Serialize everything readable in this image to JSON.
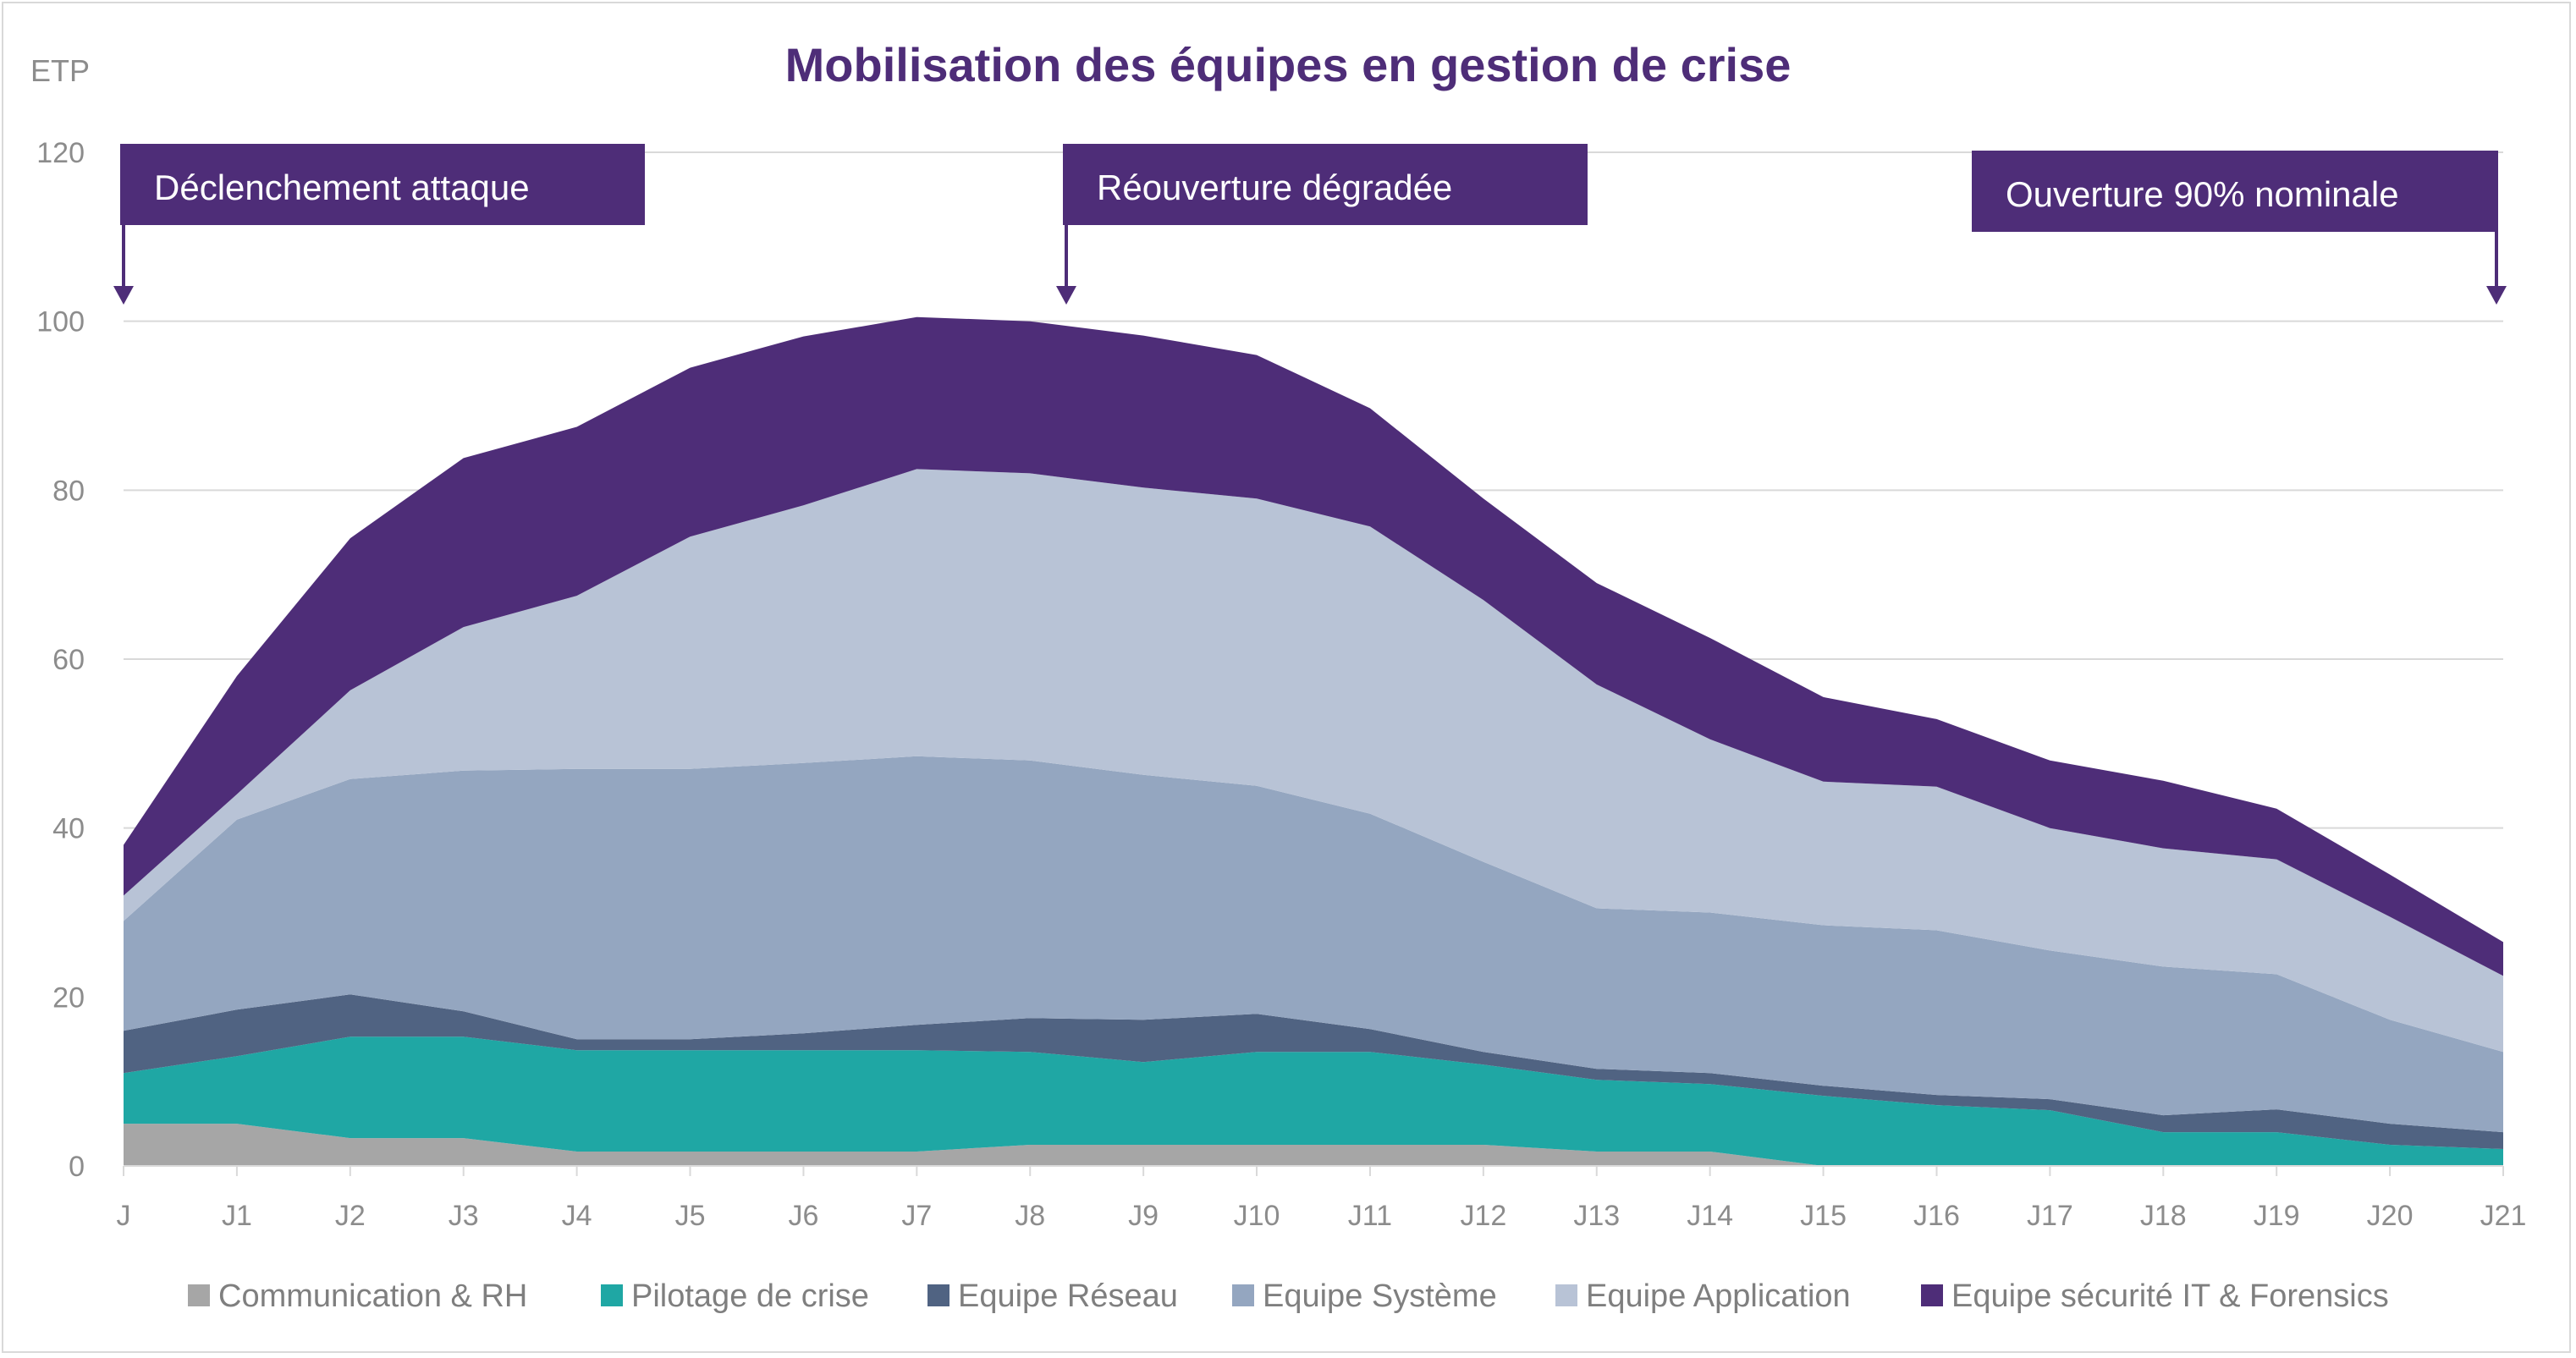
{
  "chart_data": {
    "type": "area",
    "stacked": true,
    "title": "Mobilisation des équipes en gestion de crise",
    "ylabel": "ETP",
    "xlabel": "",
    "ylim": [
      0,
      120
    ],
    "yticks": [
      0,
      20,
      40,
      60,
      80,
      100,
      120
    ],
    "grid": true,
    "legend_position": "bottom",
    "categories": [
      "J",
      "J1",
      "J2",
      "J3",
      "J4",
      "J5",
      "J6",
      "J7",
      "J8",
      "J9",
      "J10",
      "J11",
      "J12",
      "J13",
      "J14",
      "J15",
      "J16",
      "J17",
      "J18",
      "J19",
      "J20",
      "J21"
    ],
    "series": [
      {
        "name": "Communication & RH",
        "color": "#a6a6a6",
        "values": [
          5,
          5,
          3.3,
          3.3,
          1.7,
          1.7,
          1.7,
          1.7,
          2.5,
          2.5,
          2.5,
          2.5,
          2.5,
          1.7,
          1.7,
          0,
          0,
          0,
          0,
          0,
          0,
          0
        ]
      },
      {
        "name": "Pilotage de crise",
        "color": "#1fa7a4",
        "values": [
          6,
          8,
          12,
          12,
          12,
          12,
          12,
          12,
          11,
          9.8,
          11,
          11,
          9.5,
          8.5,
          8,
          8.3,
          7.2,
          6.6,
          4,
          4,
          2.5,
          2
        ]
      },
      {
        "name": "Equipe Réseau",
        "color": "#506382",
        "values": [
          5,
          5.5,
          5,
          3,
          1.3,
          1.3,
          2,
          3,
          4,
          5,
          4.5,
          2.7,
          1.5,
          1.3,
          1.3,
          1.2,
          1.2,
          1.3,
          2,
          2.7,
          2.5,
          2
        ]
      },
      {
        "name": "Equipe Système",
        "color": "#94a6c0",
        "values": [
          13,
          22.5,
          25.5,
          28.5,
          32,
          32,
          32,
          31.8,
          30.5,
          29,
          27,
          25.5,
          22.5,
          19,
          19,
          19,
          19.5,
          17.6,
          17.6,
          16,
          12.3,
          9.5
        ]
      },
      {
        "name": "Equipe Application",
        "color": "#b8c3d6",
        "values": [
          3,
          3,
          10.5,
          17,
          20.5,
          27.5,
          30.5,
          34,
          34,
          34,
          34,
          34,
          31,
          26.5,
          20.5,
          17,
          17,
          14.5,
          14,
          13.6,
          12.2,
          9
        ]
      },
      {
        "name": "Equipe sécurité IT & Forensics",
        "color": "#4e2d78",
        "values": [
          6,
          14,
          18,
          20,
          20,
          20,
          20,
          18,
          18,
          18,
          17,
          14,
          12,
          12,
          12,
          10,
          8,
          8,
          8,
          6,
          5,
          4
        ]
      }
    ],
    "annotations": [
      {
        "text": "Déclenchement attaque",
        "x": "J"
      },
      {
        "text": "Réouverture dégradée",
        "x": "J8"
      },
      {
        "text": "Ouverture 90% nominale",
        "x": "J21"
      }
    ]
  }
}
